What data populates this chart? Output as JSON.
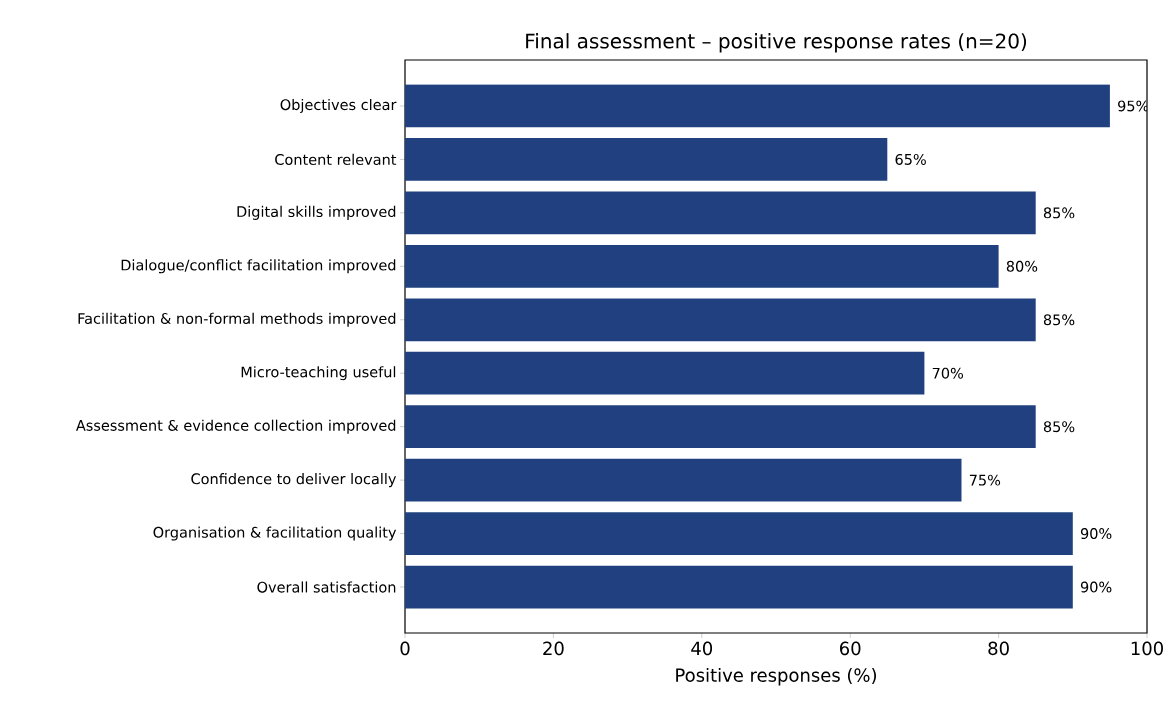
{
  "chart_data": {
    "type": "bar",
    "orientation": "horizontal",
    "title": "Final assessment – positive response rates (n=20)",
    "xlabel": "Positive responses (%)",
    "categories": [
      "Objectives clear",
      "Content relevant",
      "Digital skills improved",
      "Dialogue/conflict facilitation improved",
      "Facilitation & non-formal methods improved",
      "Micro-teaching useful",
      "Assessment & evidence collection improved",
      "Confidence to deliver locally",
      "Organisation & facilitation quality",
      "Overall satisfaction"
    ],
    "values": [
      95,
      65,
      85,
      80,
      85,
      70,
      85,
      75,
      90,
      90
    ],
    "value_labels": [
      "95%",
      "65%",
      "85%",
      "80%",
      "85%",
      "70%",
      "85%",
      "75%",
      "90%",
      "90%"
    ],
    "color": "#21407f",
    "xlim": [
      0,
      100
    ],
    "xticks": [
      0,
      20,
      40,
      60,
      80,
      100
    ],
    "grid": false
  }
}
